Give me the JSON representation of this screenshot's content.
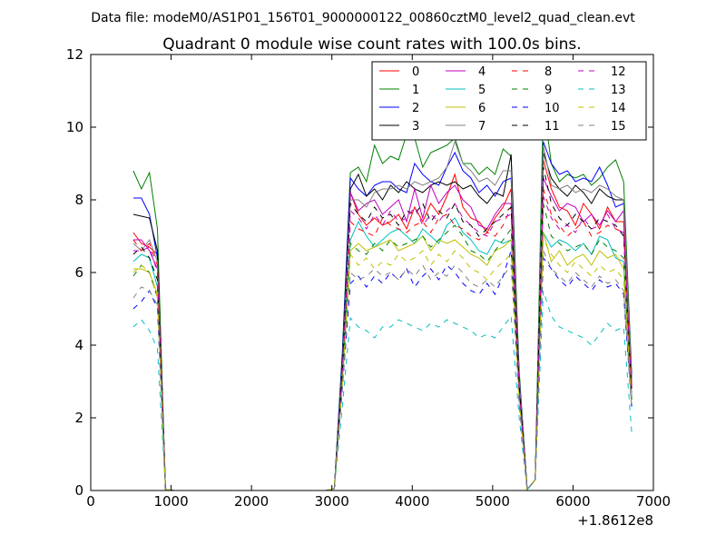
{
  "figure": {
    "suptitle": "Data file: modeM0/AS1P01_156T01_9000000122_00860cztM0_level2_quad_clean.evt"
  },
  "chart_data": {
    "type": "line",
    "title": "Quadrant 0 module wise count rates with 100.0s bins.",
    "xlabel": "",
    "ylabel": "",
    "x_offset_label": "+1.8612e8",
    "xlim": [
      0,
      7000
    ],
    "ylim": [
      0,
      12
    ],
    "xticks": [
      0,
      1000,
      2000,
      3000,
      4000,
      5000,
      6000,
      7000
    ],
    "yticks": [
      0,
      2,
      4,
      6,
      8,
      10,
      12
    ],
    "xtick_labels": [
      "0",
      "1000",
      "2000",
      "3000",
      "4000",
      "5000",
      "6000",
      "7000"
    ],
    "ytick_labels": [
      "0",
      "2",
      "4",
      "6",
      "8",
      "10",
      "12"
    ],
    "grid": false,
    "legend_position": "top-right",
    "legend_columns": 4,
    "x": [
      530,
      630,
      730,
      830,
      930,
      1030,
      1130,
      1230,
      1330,
      1430,
      1530,
      1630,
      1730,
      1830,
      1930,
      2030,
      2130,
      2230,
      2330,
      2430,
      2530,
      2630,
      2730,
      2830,
      2930,
      3030,
      3130,
      3230,
      3330,
      3430,
      3530,
      3630,
      3730,
      3830,
      3930,
      4030,
      4130,
      4230,
      4330,
      4430,
      4530,
      4630,
      4730,
      4830,
      4930,
      5030,
      5130,
      5230,
      5330,
      5430,
      5530,
      5630,
      5730,
      5830,
      5930,
      6030,
      6130,
      6230,
      6330,
      6430,
      6530,
      6630,
      6730
    ],
    "series": [
      {
        "name": "0",
        "color": "#ff0000",
        "dash": "solid",
        "values": [
          7.1,
          6.8,
          6.7,
          6.5,
          0.03,
          0,
          0,
          0,
          0,
          0,
          0,
          0,
          0,
          0,
          0,
          0,
          0,
          0,
          0,
          0,
          0,
          0,
          0,
          0,
          0,
          0.05,
          3.5,
          8.2,
          7.6,
          7.3,
          7.5,
          7.3,
          7.4,
          7.6,
          7.2,
          7.8,
          7.4,
          7.9,
          7.6,
          8.1,
          8.7,
          7.8,
          7.5,
          7.4,
          7.1,
          7.5,
          7.8,
          8.3,
          3.0,
          0.02,
          0.3,
          9.1,
          8.3,
          7.8,
          7.7,
          7.3,
          7.9,
          7.6,
          7.2,
          7.8,
          7.4,
          7.4,
          2.9
        ]
      },
      {
        "name": "1",
        "color": "#008000",
        "dash": "solid",
        "values": [
          8.8,
          8.3,
          8.75,
          7.2,
          0.03,
          0,
          0,
          0,
          0,
          0,
          0,
          0,
          0,
          0,
          0,
          0,
          0,
          0,
          0,
          0,
          0,
          0,
          0,
          0,
          0,
          0.05,
          3.8,
          8.75,
          8.9,
          8.5,
          9.5,
          9.0,
          9.2,
          9.1,
          9.8,
          9.7,
          8.9,
          9.3,
          9.4,
          9.5,
          9.7,
          9.0,
          9.0,
          8.7,
          8.9,
          8.7,
          9.4,
          9.2,
          3.3,
          0.02,
          0.3,
          10.7,
          9.0,
          8.5,
          8.7,
          8.6,
          8.7,
          8.4,
          8.6,
          8.9,
          9.1,
          8.5,
          3.2
        ]
      },
      {
        "name": "2",
        "color": "#0000ff",
        "dash": "solid",
        "values": [
          8.05,
          8.05,
          7.6,
          6.4,
          0.03,
          0,
          0,
          0,
          0,
          0,
          0,
          0,
          0,
          0,
          0,
          0,
          0,
          0,
          0,
          0,
          0,
          0,
          0,
          0,
          0,
          0.05,
          3.7,
          8.6,
          8.3,
          8.1,
          8.4,
          8.5,
          8.5,
          8.3,
          8.2,
          9.0,
          8.7,
          8.5,
          8.4,
          8.9,
          9.3,
          8.8,
          8.6,
          8.2,
          8.4,
          8.1,
          8.5,
          8.6,
          3.2,
          0.02,
          0.3,
          9.6,
          9.0,
          8.7,
          8.8,
          8.5,
          8.6,
          8.5,
          8.9,
          8.4,
          7.8,
          7.9,
          3.1
        ]
      },
      {
        "name": "3",
        "color": "#000000",
        "dash": "solid",
        "values": [
          7.6,
          7.55,
          7.5,
          6.6,
          0.03,
          0,
          0,
          0,
          0,
          0,
          0,
          0,
          0,
          0,
          0,
          0,
          0,
          0,
          0,
          0,
          0,
          0,
          0,
          0,
          0,
          0.05,
          3.5,
          8.3,
          8.7,
          8.1,
          8.3,
          8.0,
          8.4,
          8.2,
          8.5,
          8.3,
          8.2,
          8.4,
          8.5,
          8.4,
          8.5,
          8.3,
          8.4,
          8.1,
          7.9,
          8.2,
          8.1,
          9.25,
          3.1,
          0.02,
          0.3,
          9.3,
          8.6,
          8.3,
          8.1,
          8.4,
          8.2,
          7.9,
          8.3,
          8.1,
          8.0,
          8.0,
          3.0
        ]
      },
      {
        "name": "4",
        "color": "#bf00bf",
        "dash": "solid",
        "values": [
          6.9,
          6.9,
          6.6,
          6.1,
          0.03,
          0,
          0,
          0,
          0,
          0,
          0,
          0,
          0,
          0,
          0,
          0,
          0,
          0,
          0,
          0,
          0,
          0,
          0,
          0,
          0,
          0.05,
          3.3,
          8.2,
          7.7,
          7.9,
          8.0,
          7.6,
          7.8,
          8.0,
          7.4,
          8.3,
          7.5,
          8.4,
          7.9,
          8.2,
          8.4,
          8.0,
          7.8,
          7.3,
          7.2,
          7.6,
          7.9,
          7.9,
          2.9,
          0.02,
          0.3,
          8.6,
          8.1,
          7.7,
          7.9,
          7.8,
          7.4,
          7.6,
          7.3,
          7.7,
          7.4,
          7.7,
          2.8
        ]
      },
      {
        "name": "5",
        "color": "#00bfbf",
        "dash": "solid",
        "values": [
          6.3,
          6.5,
          6.4,
          5.6,
          0.03,
          0,
          0,
          0,
          0,
          0,
          0,
          0,
          0,
          0,
          0,
          0,
          0,
          0,
          0,
          0,
          0,
          0,
          0,
          0,
          0,
          0.05,
          3.1,
          6.9,
          7.4,
          7.0,
          6.7,
          6.9,
          7.1,
          7.2,
          7.0,
          6.8,
          7.2,
          7.0,
          6.8,
          7.3,
          7.5,
          7.1,
          6.9,
          6.6,
          6.5,
          6.9,
          6.8,
          6.9,
          2.7,
          0.02,
          0.3,
          7.1,
          6.7,
          6.9,
          6.8,
          6.6,
          6.8,
          6.5,
          7.0,
          6.9,
          6.4,
          6.3,
          2.6
        ]
      },
      {
        "name": "6",
        "color": "#bfbf00",
        "dash": "solid",
        "values": [
          6.1,
          6.1,
          6.0,
          5.4,
          0.03,
          0,
          0,
          0,
          0,
          0,
          0,
          0,
          0,
          0,
          0,
          0,
          0,
          0,
          0,
          0,
          0,
          0,
          0,
          0,
          0,
          0.05,
          3.0,
          6.6,
          6.8,
          6.6,
          6.7,
          6.8,
          6.9,
          6.6,
          6.7,
          6.8,
          7.0,
          6.6,
          6.9,
          6.8,
          6.9,
          6.7,
          6.5,
          6.4,
          6.2,
          6.6,
          6.7,
          6.9,
          2.6,
          0.02,
          0.3,
          7.1,
          6.3,
          6.6,
          6.2,
          6.4,
          6.5,
          6.2,
          6.6,
          6.4,
          6.5,
          6.1,
          2.5
        ]
      },
      {
        "name": "7",
        "color": "#808080",
        "dash": "solid",
        "values": [
          6.8,
          6.6,
          6.9,
          6.3,
          0.03,
          0,
          0,
          0,
          0,
          0,
          0,
          0,
          0,
          0,
          0,
          0,
          0,
          0,
          0,
          0,
          0,
          0,
          0,
          0,
          0,
          0.05,
          3.4,
          8.0,
          8.0,
          7.8,
          8.2,
          8.3,
          8.3,
          8.4,
          8.3,
          8.5,
          8.4,
          8.5,
          8.6,
          8.9,
          9.6,
          9.0,
          8.8,
          8.5,
          8.6,
          8.4,
          8.8,
          8.8,
          3.1,
          0.02,
          0.3,
          9.5,
          8.4,
          8.3,
          8.4,
          8.2,
          8.3,
          8.2,
          8.4,
          8.3,
          8.1,
          8.0,
          3.0
        ]
      },
      {
        "name": "8",
        "color": "#ff0000",
        "dash": "dashed",
        "values": [
          6.9,
          6.6,
          6.8,
          6.2,
          0.03,
          0,
          0,
          0,
          0,
          0,
          0,
          0,
          0,
          0,
          0,
          0,
          0,
          0,
          0,
          0,
          0,
          0,
          0,
          0,
          0,
          0.05,
          3.2,
          7.4,
          7.2,
          7.1,
          7.0,
          7.5,
          7.3,
          7.2,
          7.1,
          7.3,
          7.4,
          7.1,
          7.5,
          7.6,
          7.3,
          7.2,
          7.0,
          6.9,
          7.1,
          7.0,
          7.3,
          7.8,
          2.8,
          0.02,
          0.3,
          8.3,
          7.6,
          7.3,
          7.0,
          7.2,
          7.4,
          7.0,
          7.1,
          7.3,
          7.2,
          7.1,
          2.8
        ]
      },
      {
        "name": "9",
        "color": "#008000",
        "dash": "dashed",
        "values": [
          5.9,
          6.2,
          6.0,
          5.3,
          0.03,
          0,
          0,
          0,
          0,
          0,
          0,
          0,
          0,
          0,
          0,
          0,
          0,
          0,
          0,
          0,
          0,
          0,
          0,
          0,
          0,
          0.05,
          3.0,
          6.8,
          6.6,
          6.5,
          6.8,
          6.6,
          6.9,
          6.7,
          6.8,
          6.9,
          7.0,
          6.7,
          6.9,
          7.1,
          7.3,
          7.0,
          6.6,
          6.5,
          6.3,
          6.6,
          6.9,
          7.2,
          2.6,
          0.02,
          0.3,
          7.9,
          7.0,
          6.8,
          6.6,
          6.7,
          6.8,
          6.5,
          6.9,
          6.7,
          6.6,
          6.4,
          2.5
        ]
      },
      {
        "name": "10",
        "color": "#0000ff",
        "dash": "dashed",
        "values": [
          5.0,
          5.2,
          5.5,
          5.0,
          0.03,
          0,
          0,
          0,
          0,
          0,
          0,
          0,
          0,
          0,
          0,
          0,
          0,
          0,
          0,
          0,
          0,
          0,
          0,
          0,
          0,
          0.05,
          2.8,
          5.7,
          5.9,
          5.6,
          5.9,
          5.7,
          6.0,
          5.8,
          6.1,
          5.6,
          5.9,
          6.1,
          5.8,
          6.2,
          6.0,
          5.7,
          5.5,
          5.4,
          5.7,
          5.4,
          5.9,
          6.6,
          2.4,
          0.02,
          0.3,
          6.4,
          6.1,
          5.8,
          5.6,
          5.9,
          5.7,
          5.5,
          5.8,
          5.6,
          5.7,
          5.4,
          2.3
        ]
      },
      {
        "name": "11",
        "color": "#000000",
        "dash": "dashed",
        "values": [
          6.5,
          6.7,
          6.4,
          5.8,
          0.03,
          0,
          0,
          0,
          0,
          0,
          0,
          0,
          0,
          0,
          0,
          0,
          0,
          0,
          0,
          0,
          0,
          0,
          0,
          0,
          0,
          0.05,
          3.3,
          7.9,
          7.6,
          7.4,
          7.8,
          7.5,
          7.6,
          7.3,
          7.7,
          7.6,
          7.9,
          7.4,
          7.7,
          7.5,
          7.9,
          7.4,
          7.3,
          7.0,
          7.2,
          7.4,
          7.6,
          7.8,
          2.9,
          0.02,
          0.3,
          8.9,
          7.9,
          7.5,
          7.3,
          7.6,
          7.4,
          7.2,
          7.5,
          7.4,
          7.3,
          7.0,
          2.7
        ]
      },
      {
        "name": "12",
        "color": "#bf00bf",
        "dash": "dashed",
        "values": [
          6.6,
          6.6,
          6.7,
          6.0,
          0.03,
          0,
          0,
          0,
          0,
          0,
          0,
          0,
          0,
          0,
          0,
          0,
          0,
          0,
          0,
          0,
          0,
          0,
          0,
          0,
          0,
          0.05,
          3.2,
          7.7,
          7.5,
          7.2,
          7.6,
          7.3,
          7.7,
          7.4,
          7.5,
          7.8,
          7.3,
          7.6,
          7.4,
          7.7,
          7.9,
          7.5,
          7.3,
          7.1,
          7.0,
          7.4,
          7.5,
          7.6,
          2.8,
          0.02,
          0.3,
          8.1,
          7.5,
          7.2,
          7.3,
          7.1,
          7.5,
          7.2,
          7.3,
          7.6,
          7.2,
          7.1,
          2.7
        ]
      },
      {
        "name": "13",
        "color": "#00bfbf",
        "dash": "dashed",
        "values": [
          4.5,
          4.7,
          4.4,
          3.9,
          0.03,
          0,
          0,
          0,
          0,
          0,
          0,
          0,
          0,
          0,
          0,
          0,
          0,
          0,
          0,
          0,
          0,
          0,
          0,
          0,
          0,
          0.05,
          2.3,
          4.75,
          4.5,
          4.4,
          4.2,
          4.5,
          4.5,
          4.7,
          4.6,
          4.5,
          4.4,
          4.6,
          4.5,
          4.7,
          4.6,
          4.5,
          4.4,
          4.2,
          4.3,
          4.2,
          4.5,
          4.8,
          2.0,
          0.02,
          0.3,
          5.5,
          4.8,
          4.5,
          4.4,
          4.3,
          4.2,
          4.0,
          4.3,
          4.6,
          4.4,
          4.5,
          1.6
        ]
      },
      {
        "name": "14",
        "color": "#bfbf00",
        "dash": "dashed",
        "values": [
          6.0,
          6.2,
          6.0,
          5.3,
          0.03,
          0,
          0,
          0,
          0,
          0,
          0,
          0,
          0,
          0,
          0,
          0,
          0,
          0,
          0,
          0,
          0,
          0,
          0,
          0,
          0,
          0.05,
          2.9,
          6.5,
          6.2,
          6.4,
          6.1,
          6.3,
          6.2,
          6.5,
          6.3,
          6.4,
          6.6,
          6.2,
          6.5,
          6.3,
          6.6,
          6.4,
          6.1,
          6.0,
          5.8,
          6.1,
          6.3,
          6.5,
          2.5,
          0.02,
          0.3,
          6.9,
          6.5,
          6.2,
          6.0,
          6.3,
          6.1,
          5.9,
          6.2,
          6.0,
          6.1,
          5.8,
          2.4
        ]
      },
      {
        "name": "15",
        "color": "#808080",
        "dash": "dashed",
        "values": [
          5.3,
          5.6,
          5.5,
          5.1,
          0.03,
          0,
          0,
          0,
          0,
          0,
          0,
          0,
          0,
          0,
          0,
          0,
          0,
          0,
          0,
          0,
          0,
          0,
          0,
          0,
          0,
          0.05,
          2.8,
          6.0,
          5.8,
          5.9,
          6.1,
          5.9,
          6.0,
          5.8,
          6.1,
          5.9,
          6.2,
          5.8,
          6.0,
          5.9,
          6.2,
          6.0,
          5.7,
          5.6,
          5.8,
          5.6,
          5.9,
          6.2,
          2.4,
          0.02,
          0.3,
          6.6,
          6.1,
          5.9,
          5.7,
          6.0,
          5.8,
          5.6,
          5.9,
          5.7,
          5.8,
          5.5,
          2.3
        ]
      }
    ]
  }
}
